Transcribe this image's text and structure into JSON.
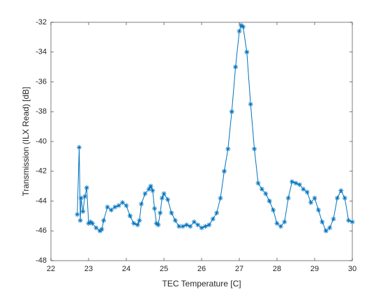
{
  "chart_data": {
    "type": "line",
    "xlabel": "TEC Temperature [C]",
    "ylabel": "Transmission (ILX Read) [dB]",
    "xlim": [
      22,
      30
    ],
    "xticks": [
      22,
      23,
      24,
      25,
      26,
      27,
      28,
      29,
      30
    ],
    "ylim": [
      -48,
      -32
    ],
    "yticks": [
      -48,
      -46,
      -44,
      -42,
      -40,
      -38,
      -36,
      -34,
      -32
    ],
    "marker": "*",
    "series": [
      {
        "color": "#0072BD",
        "x": [
          22.7,
          22.75,
          22.78,
          22.8,
          22.85,
          22.9,
          22.95,
          23.0,
          23.05,
          23.1,
          23.2,
          23.3,
          23.35,
          23.4,
          23.5,
          23.6,
          23.7,
          23.8,
          23.9,
          24.0,
          24.1,
          24.2,
          24.3,
          24.35,
          24.4,
          24.5,
          24.6,
          24.65,
          24.7,
          24.75,
          24.8,
          24.85,
          24.9,
          24.95,
          25.0,
          25.1,
          25.2,
          25.3,
          25.4,
          25.5,
          25.6,
          25.7,
          25.8,
          25.9,
          26.0,
          26.1,
          26.2,
          26.3,
          26.4,
          26.5,
          26.6,
          26.7,
          26.8,
          26.9,
          27.0,
          27.05,
          27.1,
          27.2,
          27.3,
          27.4,
          27.5,
          27.6,
          27.7,
          27.8,
          27.9,
          28.0,
          28.1,
          28.2,
          28.3,
          28.4,
          28.5,
          28.6,
          28.7,
          28.8,
          28.9,
          29.0,
          29.1,
          29.2,
          29.3,
          29.4,
          29.5,
          29.6,
          29.7,
          29.8,
          29.9,
          30.0
        ],
        "values": [
          -44.9,
          -40.4,
          -45.3,
          -43.8,
          -44.7,
          -43.7,
          -43.1,
          -45.5,
          -45.4,
          -45.5,
          -45.8,
          -46.0,
          -45.9,
          -45.3,
          -44.4,
          -44.6,
          -44.4,
          -44.3,
          -44.1,
          -44.3,
          -45.0,
          -45.5,
          -45.6,
          -45.3,
          -44.2,
          -43.5,
          -43.2,
          -43.0,
          -43.3,
          -44.5,
          -45.5,
          -45.6,
          -44.8,
          -43.8,
          -43.5,
          -43.9,
          -44.8,
          -45.3,
          -45.7,
          -45.7,
          -45.6,
          -45.7,
          -45.4,
          -45.6,
          -45.8,
          -45.7,
          -45.6,
          -45.2,
          -44.8,
          -43.8,
          -42.0,
          -40.5,
          -38.0,
          -35.0,
          -32.6,
          -32.2,
          -32.3,
          -34.0,
          -37.5,
          -40.5,
          -42.8,
          -43.2,
          -43.5,
          -44.0,
          -44.6,
          -45.5,
          -45.7,
          -45.4,
          -43.8,
          -42.7,
          -42.8,
          -42.9,
          -43.2,
          -43.4,
          -44.1,
          -43.8,
          -44.6,
          -45.4,
          -46.0,
          -45.8,
          -45.2,
          -43.8,
          -43.3,
          -43.8,
          -45.3,
          -45.4
        ]
      }
    ]
  }
}
